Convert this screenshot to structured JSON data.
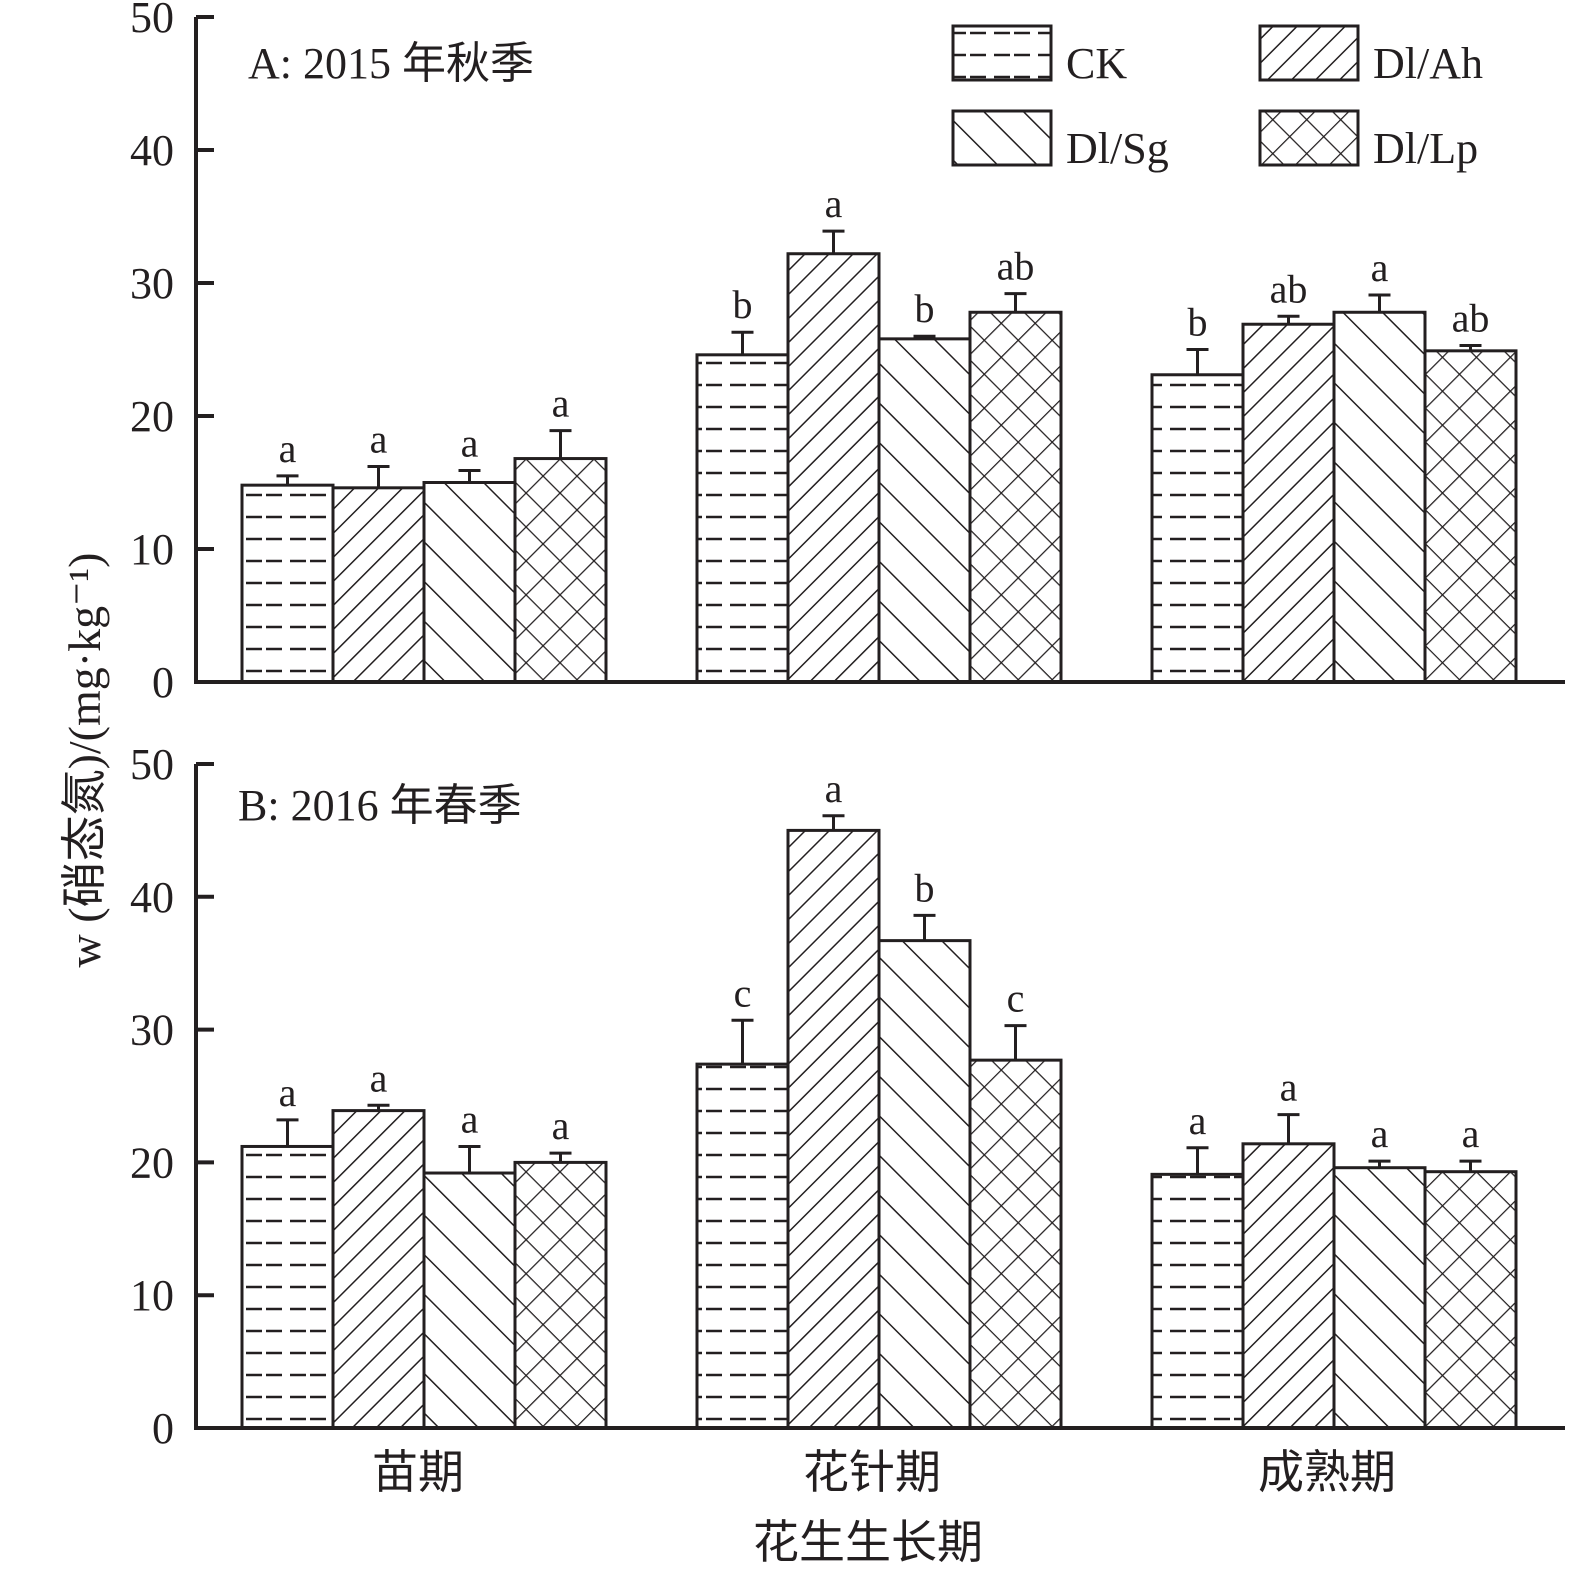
{
  "chart_data": [
    {
      "type": "bar",
      "title": "A: 2015 年秋季",
      "categories": [
        "苗期",
        "花针期",
        "成熟期"
      ],
      "ylim": [
        0,
        50
      ],
      "yticks": [
        0,
        10,
        20,
        30,
        40,
        50
      ],
      "series": [
        {
          "name": "CK",
          "pattern": "dash",
          "values": [
            14.8,
            24.6,
            23.1
          ],
          "errors": [
            0.7,
            1.7,
            1.9
          ],
          "letters": [
            "a",
            "b",
            "b"
          ]
        },
        {
          "name": "Dl/Ah",
          "pattern": "diag-up",
          "values": [
            14.6,
            32.2,
            26.9
          ],
          "errors": [
            1.6,
            1.7,
            0.6
          ],
          "letters": [
            "a",
            "a",
            "ab"
          ]
        },
        {
          "name": "Dl/Sg",
          "pattern": "diag-down",
          "values": [
            15.0,
            25.8,
            27.8
          ],
          "errors": [
            0.9,
            0.2,
            1.3
          ],
          "letters": [
            "a",
            "b",
            "a"
          ]
        },
        {
          "name": "Dl/Lp",
          "pattern": "cross",
          "values": [
            16.8,
            27.8,
            24.9
          ],
          "errors": [
            2.1,
            1.4,
            0.4
          ],
          "letters": [
            "a",
            "ab",
            "ab"
          ]
        }
      ]
    },
    {
      "type": "bar",
      "title": "B: 2016 年春季",
      "categories": [
        "苗期",
        "花针期",
        "成熟期"
      ],
      "ylim": [
        0,
        50
      ],
      "yticks": [
        0,
        10,
        20,
        30,
        40,
        50
      ],
      "series": [
        {
          "name": "CK",
          "pattern": "dash",
          "values": [
            21.2,
            27.4,
            19.1
          ],
          "errors": [
            2.0,
            3.3,
            2.0
          ],
          "letters": [
            "a",
            "c",
            "a"
          ]
        },
        {
          "name": "Dl/Ah",
          "pattern": "diag-up",
          "values": [
            23.9,
            45.0,
            21.4
          ],
          "errors": [
            0.4,
            1.1,
            2.2
          ],
          "letters": [
            "a",
            "a",
            "a"
          ]
        },
        {
          "name": "Dl/Sg",
          "pattern": "diag-down",
          "values": [
            19.2,
            36.7,
            19.6
          ],
          "errors": [
            2.0,
            1.9,
            0.5
          ],
          "letters": [
            "a",
            "b",
            "a"
          ]
        },
        {
          "name": "Dl/Lp",
          "pattern": "cross",
          "values": [
            20.0,
            27.7,
            19.3
          ],
          "errors": [
            0.7,
            2.6,
            0.8
          ],
          "letters": [
            "a",
            "c",
            "a"
          ]
        }
      ]
    }
  ],
  "ylabel": "w (硝态氮)/(mg·kg⁻¹)",
  "xlabel": "花生生长期",
  "legend": {
    "placement": "top-right",
    "entries": [
      "CK",
      "Dl/Ah",
      "Dl/Sg",
      "Dl/Lp"
    ]
  }
}
